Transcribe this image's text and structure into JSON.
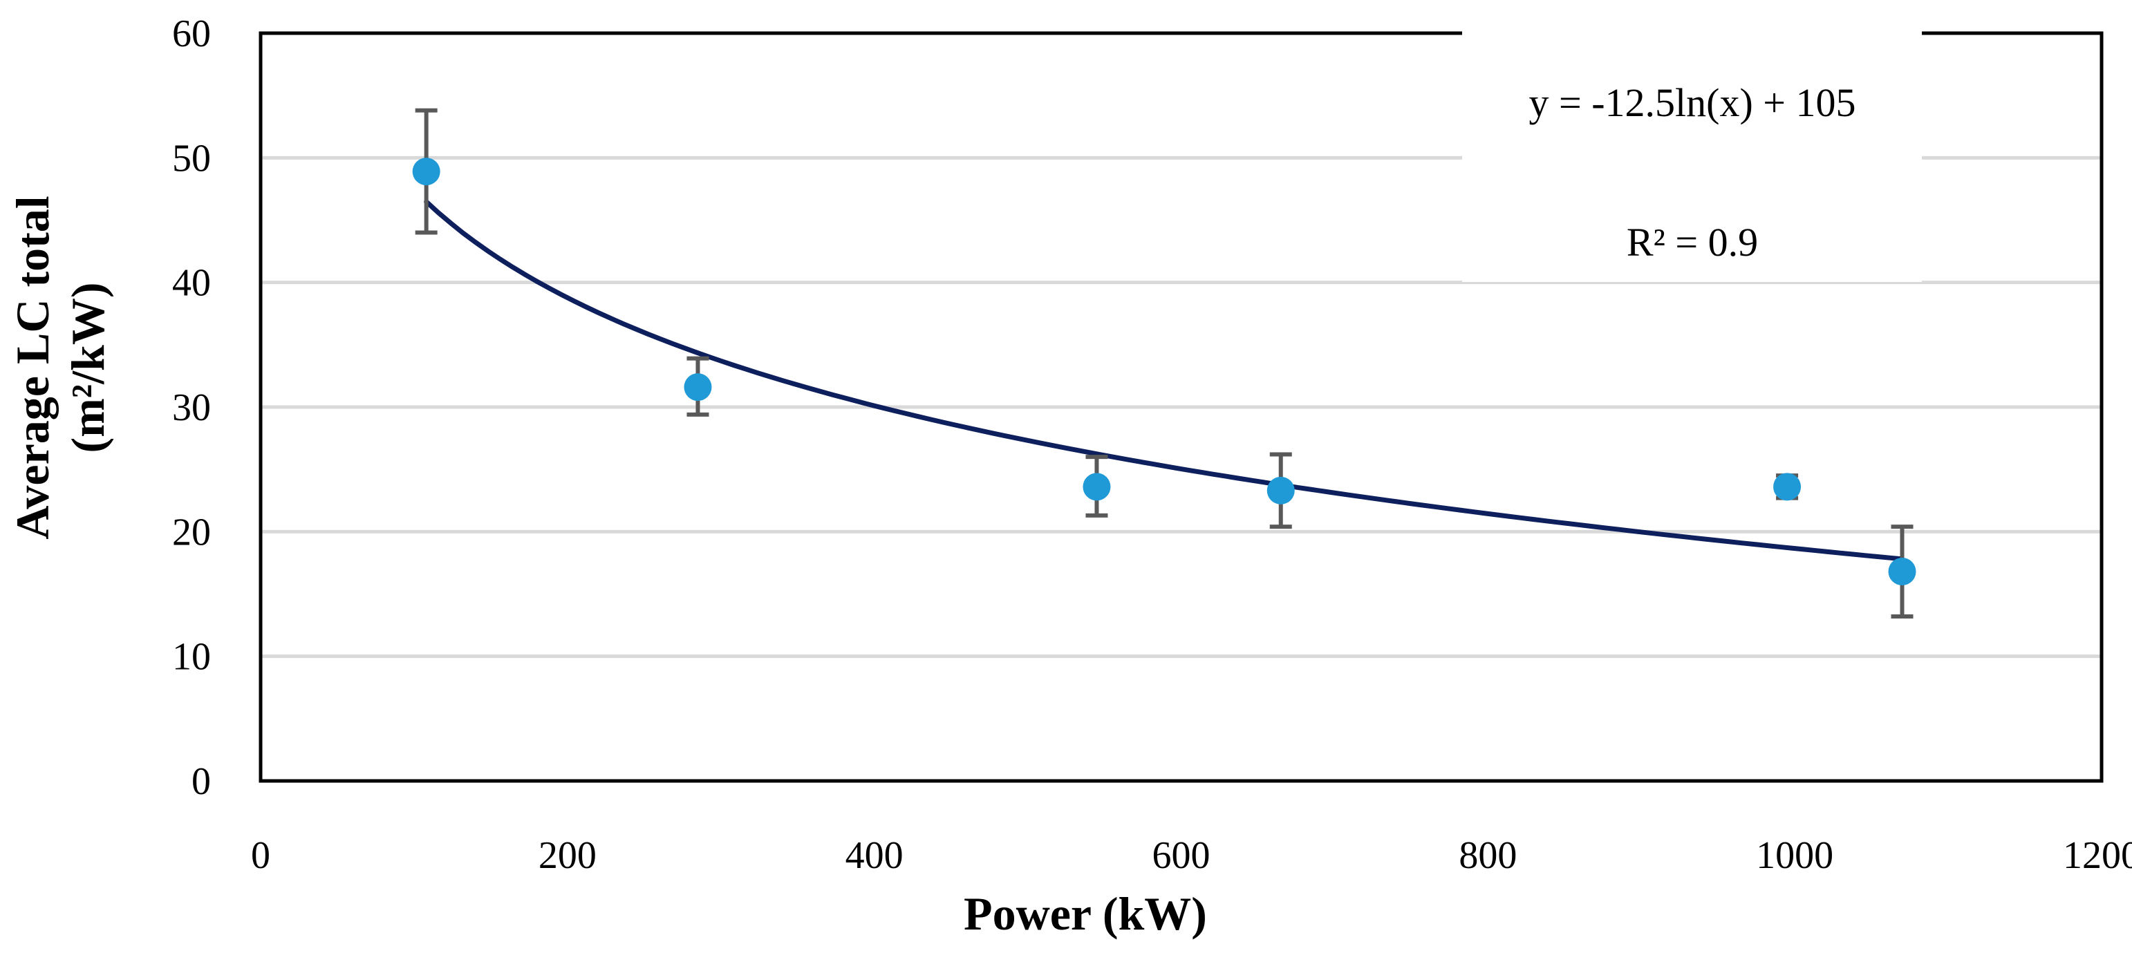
{
  "chart_data": {
    "type": "scatter",
    "title": "",
    "xlabel": "Power (kW)",
    "ylabel_line1": "Average LC total",
    "ylabel_line2": "(m²/kW)",
    "xlim": [
      0,
      1200
    ],
    "ylim": [
      0,
      60
    ],
    "x_ticks": [
      0,
      200,
      400,
      600,
      800,
      1000,
      1200
    ],
    "y_ticks": [
      0,
      10,
      20,
      30,
      40,
      50,
      60
    ],
    "grid": "horizontal",
    "legend": "none",
    "colors": {
      "points": "#1f9ad6",
      "trendline": "#0d1f5c",
      "error_bars": "#595959",
      "grid": "#d9d9d9"
    },
    "series": [
      {
        "name": "Average LC total",
        "points": [
          {
            "x": 108,
            "y": 48.9,
            "err_low": 44.0,
            "err_high": 53.8
          },
          {
            "x": 285,
            "y": 31.6,
            "err_low": 29.4,
            "err_high": 33.9
          },
          {
            "x": 545,
            "y": 23.6,
            "err_low": 21.3,
            "err_high": 26.0
          },
          {
            "x": 665,
            "y": 23.3,
            "err_low": 20.4,
            "err_high": 26.2
          },
          {
            "x": 995,
            "y": 23.6,
            "err_low": 22.7,
            "err_high": 24.5
          },
          {
            "x": 1070,
            "y": 16.8,
            "err_low": 13.2,
            "err_high": 20.4
          }
        ]
      }
    ],
    "trendline": {
      "type": "log",
      "a": -12.5,
      "b": 105,
      "x_start": 108,
      "x_end": 1070
    },
    "annotations": {
      "equation": "y = -12.5ln(x) + 105",
      "r_squared": "R² = 0.9"
    }
  }
}
